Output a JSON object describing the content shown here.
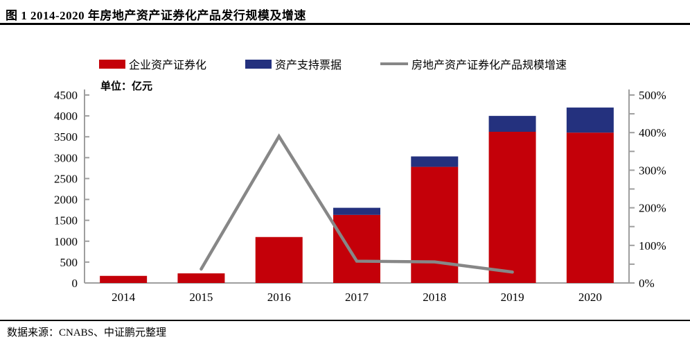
{
  "header": {
    "title": "图 1  2014-2020 年房地产资产证券化产品发行规模及增速"
  },
  "footer": {
    "source": "数据来源：CNABS、中证鹏元整理"
  },
  "chart_data": {
    "type": "bar",
    "subtype": "stacked-bar-with-line",
    "title": "图 1 2014-2020 年房地产资产证券化产品发行规模及增速",
    "unit_label": "单位：亿元",
    "categories": [
      "2014",
      "2015",
      "2016",
      "2017",
      "2018",
      "2019",
      "2020"
    ],
    "series": [
      {
        "name": "企业资产证券化",
        "type": "bar",
        "stack": "issuance",
        "color": "#C40009",
        "axis": "left",
        "values": [
          170,
          230,
          1100,
          1630,
          2780,
          3620,
          3600
        ]
      },
      {
        "name": "资产支持票据",
        "type": "bar",
        "stack": "issuance",
        "color": "#24317E",
        "axis": "left",
        "values": [
          0,
          0,
          0,
          170,
          250,
          380,
          600
        ]
      },
      {
        "name": "房地产资产证券化产品规模增速",
        "type": "line",
        "color": "#878787",
        "axis": "right",
        "values": [
          null,
          37,
          390,
          58,
          56,
          29,
          null
        ]
      }
    ],
    "left_axis": {
      "min": 0,
      "max": 4500,
      "step": 500,
      "label": "亿元"
    },
    "right_axis": {
      "min": 0,
      "max": 500,
      "step": 100,
      "minor_step": 50,
      "suffix": "%"
    },
    "legend_position": "top",
    "grid": false,
    "axis_color": "#9E9E9E"
  }
}
